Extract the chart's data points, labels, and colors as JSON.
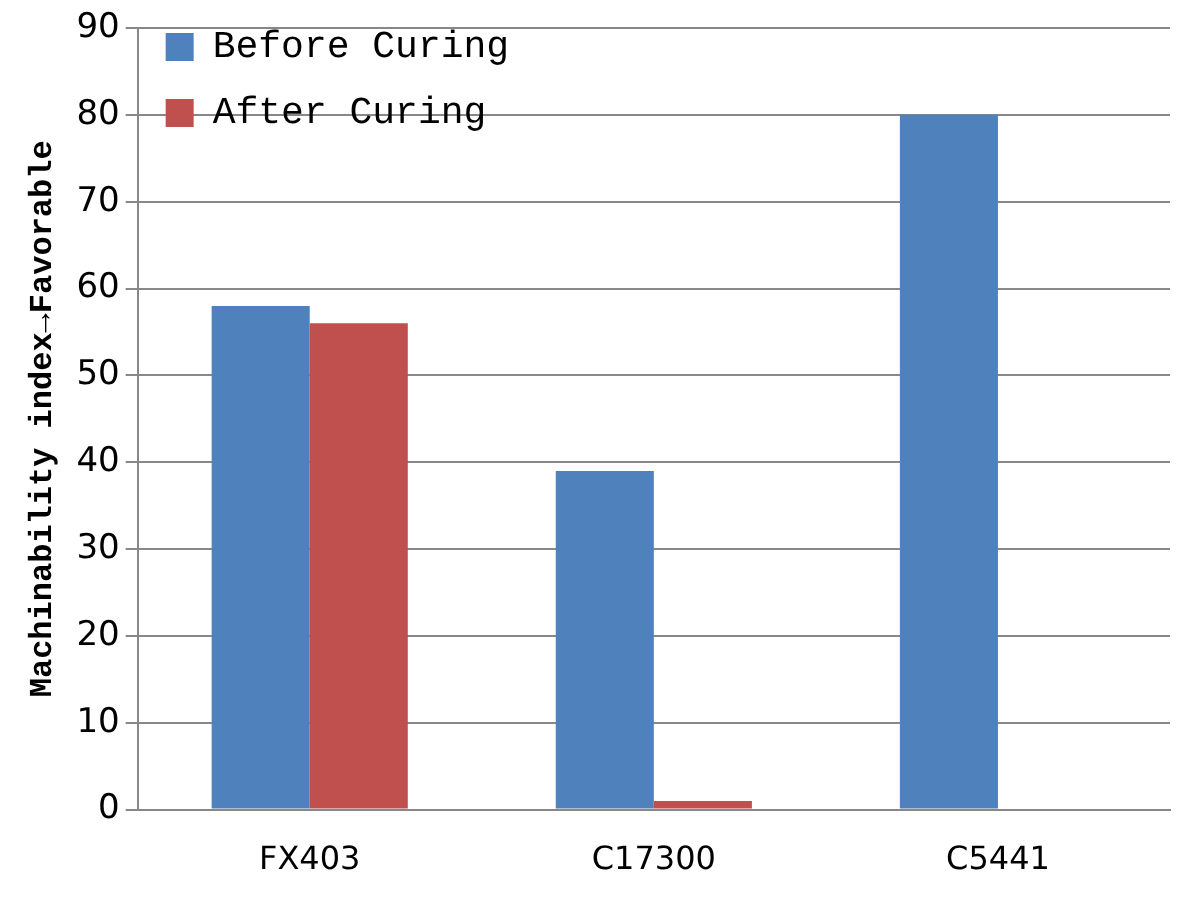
{
  "chart_data": {
    "type": "bar",
    "ylabel": "Machinability index→Favorable",
    "categories": [
      "FX403",
      "C17300",
      "C5441"
    ],
    "series": [
      {
        "name": "Before Curing",
        "color": "#4f81bd",
        "values": [
          58,
          39,
          80
        ]
      },
      {
        "name": "After Curing",
        "color": "#c0504d",
        "values": [
          56,
          1,
          null
        ]
      }
    ],
    "ylim": [
      0,
      90
    ],
    "yticks": [
      0,
      10,
      20,
      30,
      40,
      50,
      60,
      70,
      80,
      90
    ],
    "grid": "y",
    "legend": "top left"
  }
}
